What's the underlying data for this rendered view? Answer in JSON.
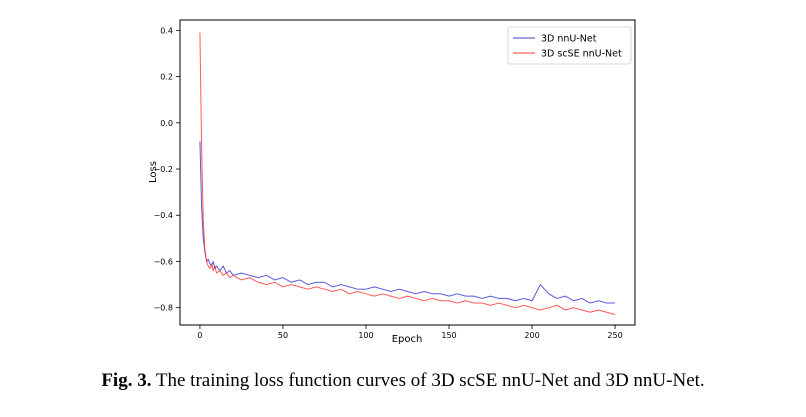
{
  "caption": {
    "label": "Fig. 3.",
    "text": "The training loss function curves of 3D scSE nnU-Net and 3D nnU-Net."
  },
  "chart_data": {
    "type": "line",
    "title": "",
    "xlabel": "Epoch",
    "ylabel": "Loss",
    "xlim": [
      -12,
      262
    ],
    "ylim": [
      -0.875,
      0.445
    ],
    "xticks": [
      0,
      50,
      100,
      150,
      200,
      250
    ],
    "xtick_labels": [
      "0",
      "50",
      "100",
      "150",
      "200",
      "250"
    ],
    "yticks": [
      0.4,
      0.2,
      0.0,
      -0.2,
      -0.4,
      -0.6,
      -0.8
    ],
    "ytick_labels": [
      "0.4",
      "0.2",
      "0.0",
      "−0.2",
      "−0.4",
      "−0.6",
      "−0.8"
    ],
    "legend_position": "top-right",
    "grid": false,
    "series": [
      {
        "name": "3D nnU-Net",
        "color": "#3b3bd6",
        "x": [
          0,
          1,
          2,
          3,
          4,
          5,
          6,
          7,
          8,
          9,
          10,
          12,
          14,
          16,
          18,
          20,
          25,
          30,
          35,
          40,
          45,
          50,
          55,
          60,
          65,
          70,
          75,
          80,
          85,
          90,
          95,
          100,
          105,
          110,
          115,
          120,
          125,
          130,
          135,
          140,
          145,
          150,
          155,
          160,
          165,
          170,
          175,
          180,
          185,
          190,
          195,
          200,
          205,
          210,
          215,
          220,
          225,
          230,
          235,
          240,
          245,
          250
        ],
        "y": [
          -0.08,
          -0.36,
          -0.5,
          -0.56,
          -0.6,
          -0.59,
          -0.61,
          -0.62,
          -0.6,
          -0.63,
          -0.62,
          -0.64,
          -0.62,
          -0.65,
          -0.64,
          -0.66,
          -0.65,
          -0.66,
          -0.67,
          -0.66,
          -0.68,
          -0.67,
          -0.69,
          -0.68,
          -0.7,
          -0.69,
          -0.69,
          -0.71,
          -0.7,
          -0.71,
          -0.72,
          -0.72,
          -0.71,
          -0.72,
          -0.73,
          -0.72,
          -0.73,
          -0.74,
          -0.73,
          -0.74,
          -0.74,
          -0.75,
          -0.74,
          -0.75,
          -0.75,
          -0.76,
          -0.75,
          -0.76,
          -0.76,
          -0.77,
          -0.76,
          -0.77,
          -0.7,
          -0.74,
          -0.76,
          -0.75,
          -0.77,
          -0.76,
          -0.78,
          -0.77,
          -0.78,
          -0.78
        ]
      },
      {
        "name": "3D scSE nnU-Net",
        "color": "#ff3b3b",
        "x": [
          0,
          1,
          2,
          3,
          4,
          5,
          6,
          7,
          8,
          9,
          10,
          12,
          14,
          16,
          18,
          20,
          25,
          30,
          35,
          40,
          45,
          50,
          55,
          60,
          65,
          70,
          75,
          80,
          85,
          90,
          95,
          100,
          105,
          110,
          115,
          120,
          125,
          130,
          135,
          140,
          145,
          150,
          155,
          160,
          165,
          170,
          175,
          180,
          185,
          190,
          195,
          200,
          205,
          210,
          215,
          220,
          225,
          230,
          235,
          240,
          245,
          250
        ],
        "y": [
          0.39,
          -0.1,
          -0.42,
          -0.55,
          -0.6,
          -0.62,
          -0.63,
          -0.61,
          -0.64,
          -0.62,
          -0.65,
          -0.64,
          -0.66,
          -0.65,
          -0.67,
          -0.66,
          -0.68,
          -0.67,
          -0.69,
          -0.7,
          -0.69,
          -0.71,
          -0.7,
          -0.71,
          -0.72,
          -0.71,
          -0.72,
          -0.73,
          -0.72,
          -0.74,
          -0.73,
          -0.74,
          -0.75,
          -0.74,
          -0.75,
          -0.76,
          -0.75,
          -0.76,
          -0.77,
          -0.76,
          -0.77,
          -0.77,
          -0.78,
          -0.77,
          -0.78,
          -0.78,
          -0.79,
          -0.78,
          -0.79,
          -0.8,
          -0.79,
          -0.8,
          -0.81,
          -0.8,
          -0.79,
          -0.81,
          -0.8,
          -0.81,
          -0.82,
          -0.81,
          -0.82,
          -0.83
        ]
      }
    ]
  }
}
